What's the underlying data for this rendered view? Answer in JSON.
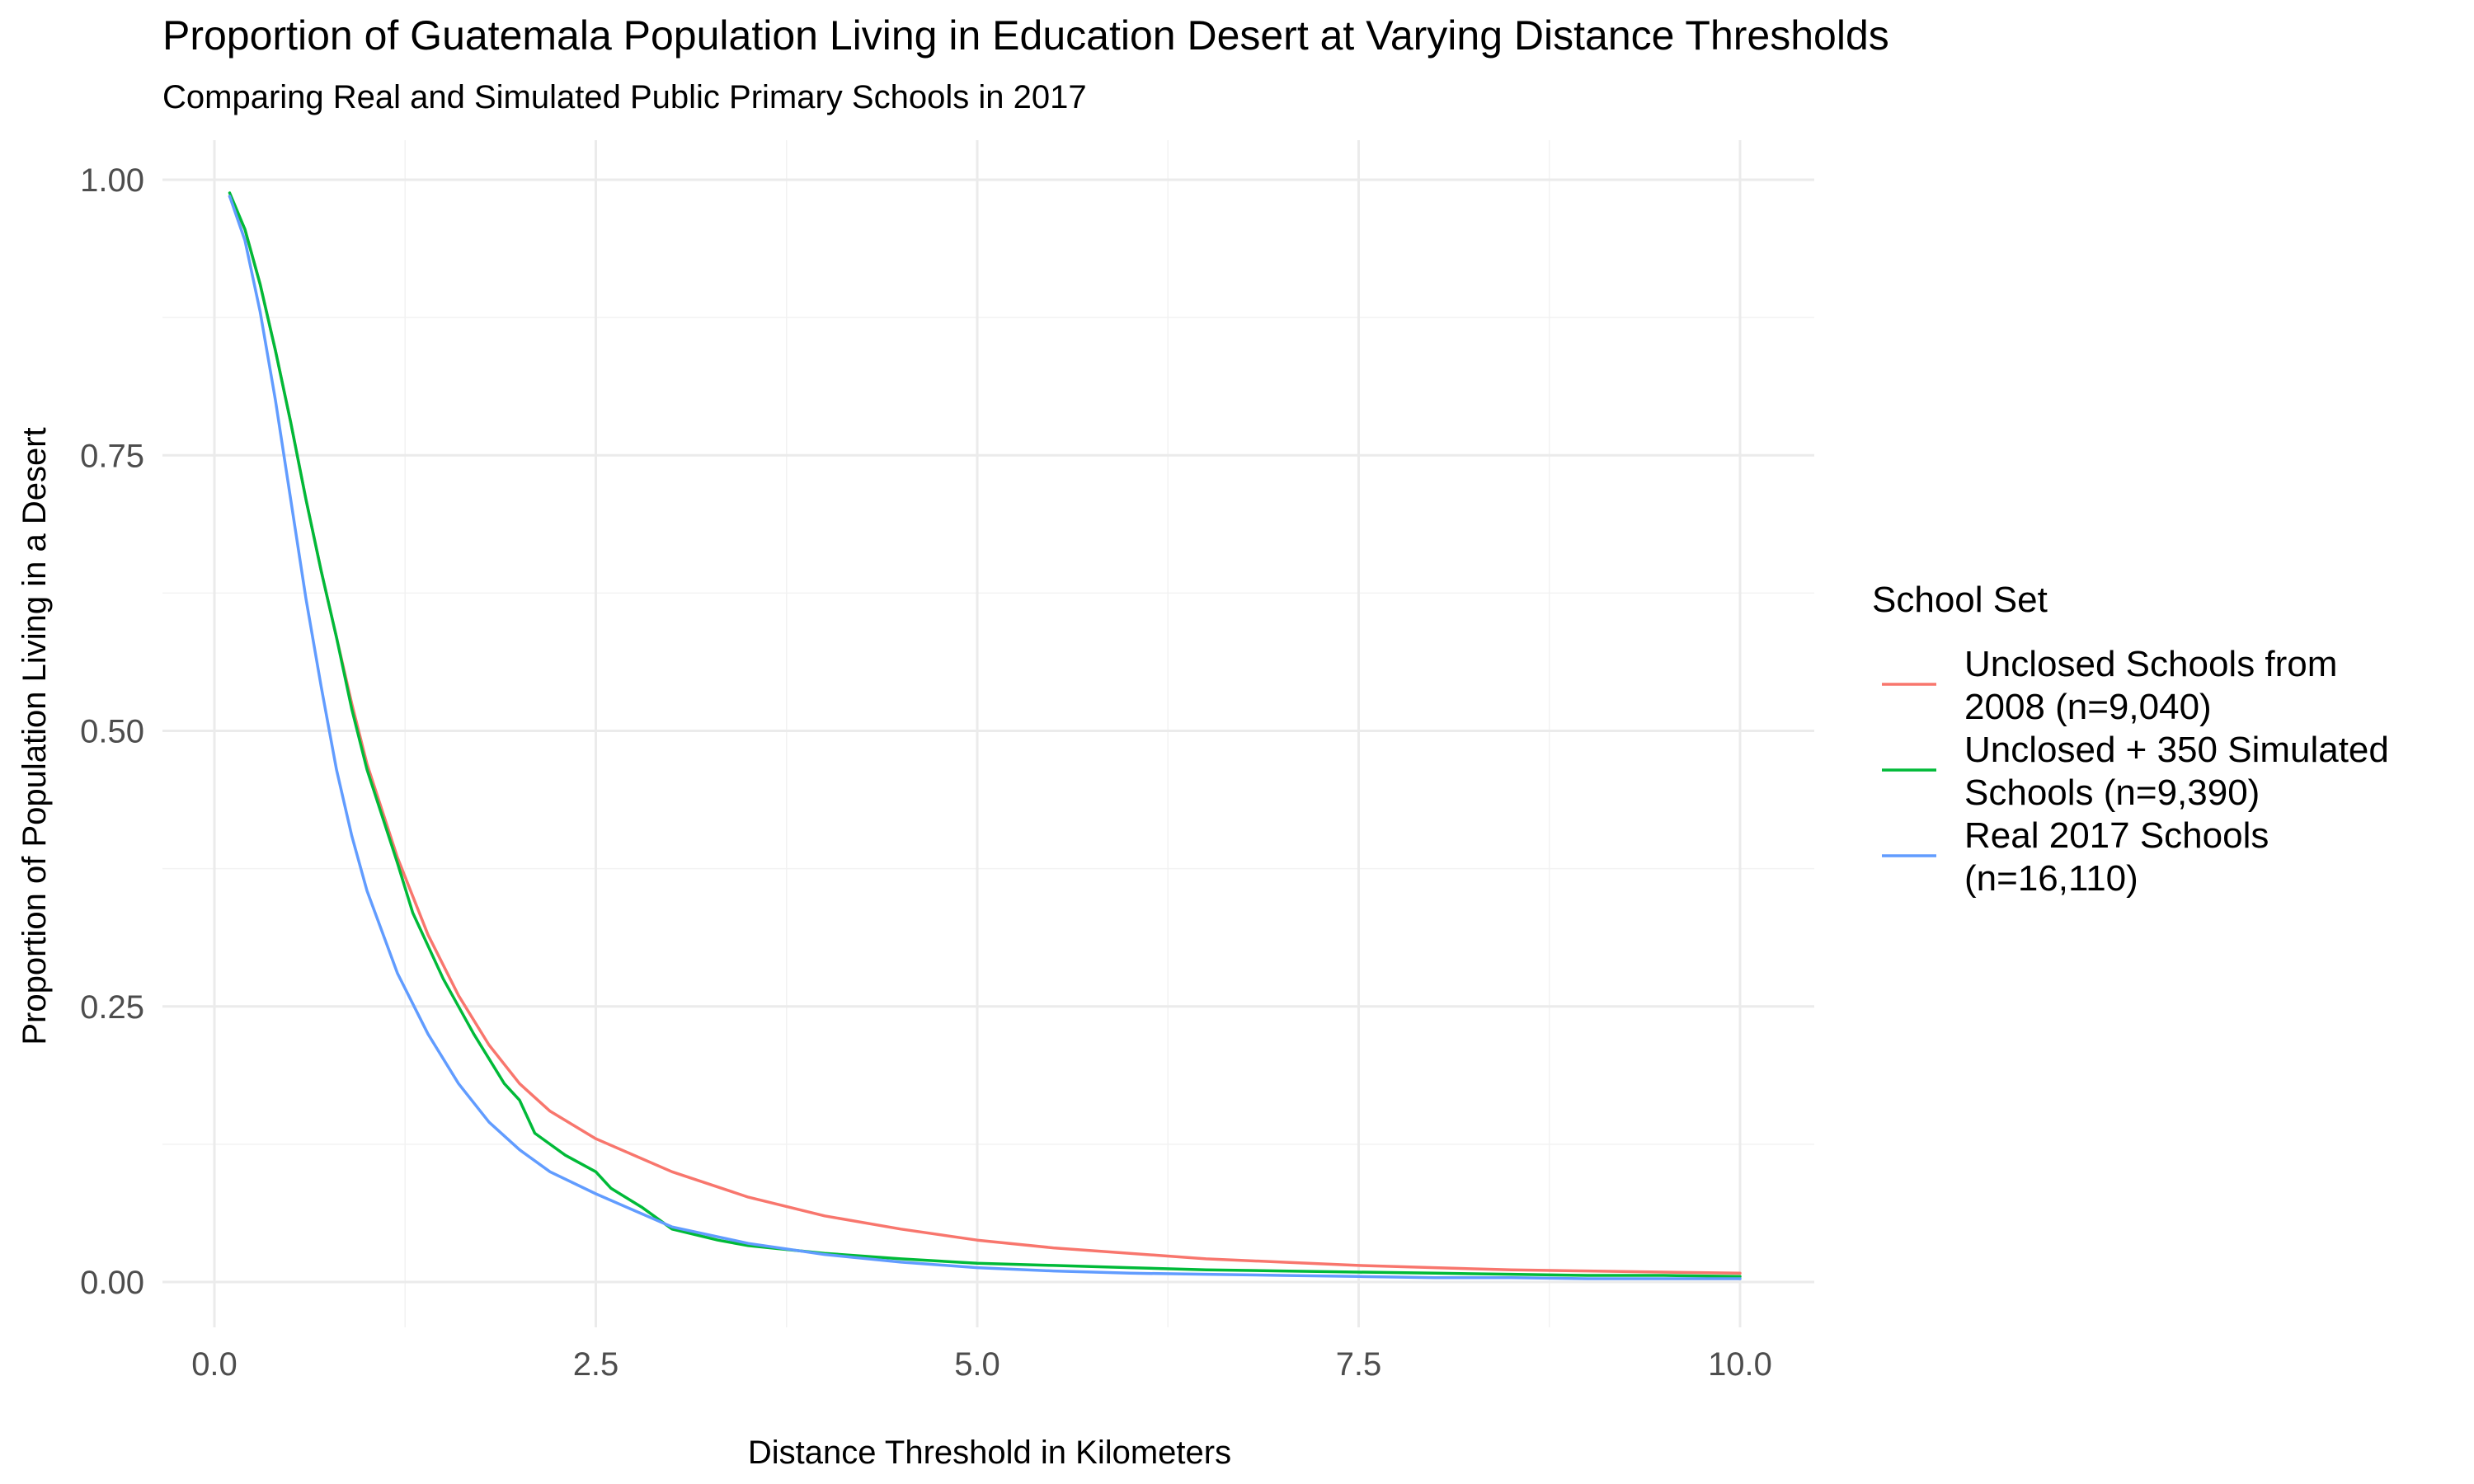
{
  "chart_data": {
    "type": "line",
    "title": "Proportion of Guatemala Population Living in Education Desert at Varying Distance Thresholds",
    "subtitle": "Comparing Real and Simulated Public Primary Schools in 2017",
    "xlabel": "Distance Threshold in Kilometers",
    "ylabel": "Proportion of Population Living in a Desert",
    "xlim": [
      0,
      10
    ],
    "ylim": [
      0,
      1
    ],
    "x_ticks": [
      "0.0",
      "2.5",
      "5.0",
      "7.5",
      "10.0"
    ],
    "y_ticks": [
      "0.00",
      "0.25",
      "0.50",
      "0.75",
      "1.00"
    ],
    "grid": true,
    "legend": {
      "title": "School Set",
      "position": "right"
    },
    "series": [
      {
        "name": "Unclosed Schools from 2008 (n=9,040)",
        "label_lines": [
          "Unclosed Schools from",
          "2008 (n=9,040)"
        ],
        "color": "#F8766D",
        "points": [
          [
            0.1,
            0.985
          ],
          [
            0.2,
            0.955
          ],
          [
            0.3,
            0.905
          ],
          [
            0.4,
            0.845
          ],
          [
            0.5,
            0.78
          ],
          [
            0.6,
            0.71
          ],
          [
            0.7,
            0.645
          ],
          [
            0.8,
            0.585
          ],
          [
            0.9,
            0.525
          ],
          [
            1.0,
            0.47
          ],
          [
            1.2,
            0.385
          ],
          [
            1.4,
            0.315
          ],
          [
            1.6,
            0.26
          ],
          [
            1.8,
            0.215
          ],
          [
            2.0,
            0.18
          ],
          [
            2.2,
            0.155
          ],
          [
            2.5,
            0.13
          ],
          [
            3.0,
            0.1
          ],
          [
            3.5,
            0.077
          ],
          [
            4.0,
            0.06
          ],
          [
            4.5,
            0.048
          ],
          [
            5.0,
            0.038
          ],
          [
            5.5,
            0.031
          ],
          [
            6.0,
            0.026
          ],
          [
            6.5,
            0.021
          ],
          [
            7.0,
            0.018
          ],
          [
            7.5,
            0.015
          ],
          [
            8.0,
            0.013
          ],
          [
            8.5,
            0.011
          ],
          [
            9.0,
            0.01
          ],
          [
            9.5,
            0.009
          ],
          [
            10.0,
            0.008
          ]
        ]
      },
      {
        "name": "Unclosed + 350 Simulated Schools (n=9,390)",
        "label_lines": [
          "Unclosed + 350 Simulated",
          "Schools (n=9,390)"
        ],
        "color": "#00BA38",
        "points": [
          [
            0.1,
            0.988
          ],
          [
            0.2,
            0.955
          ],
          [
            0.3,
            0.905
          ],
          [
            0.4,
            0.845
          ],
          [
            0.5,
            0.78
          ],
          [
            0.6,
            0.71
          ],
          [
            0.7,
            0.645
          ],
          [
            0.8,
            0.585
          ],
          [
            0.9,
            0.52
          ],
          [
            1.0,
            0.465
          ],
          [
            1.2,
            0.38
          ],
          [
            1.3,
            0.335
          ],
          [
            1.5,
            0.275
          ],
          [
            1.7,
            0.225
          ],
          [
            1.9,
            0.18
          ],
          [
            2.0,
            0.165
          ],
          [
            2.1,
            0.135
          ],
          [
            2.3,
            0.115
          ],
          [
            2.5,
            0.1
          ],
          [
            2.6,
            0.085
          ],
          [
            2.8,
            0.068
          ],
          [
            3.0,
            0.048
          ],
          [
            3.3,
            0.038
          ],
          [
            3.5,
            0.033
          ],
          [
            4.0,
            0.026
          ],
          [
            4.5,
            0.021
          ],
          [
            5.0,
            0.017
          ],
          [
            5.5,
            0.015
          ],
          [
            6.0,
            0.013
          ],
          [
            6.5,
            0.011
          ],
          [
            7.0,
            0.01
          ],
          [
            7.5,
            0.009
          ],
          [
            8.0,
            0.008
          ],
          [
            8.5,
            0.007
          ],
          [
            9.0,
            0.006
          ],
          [
            9.5,
            0.006
          ],
          [
            10.0,
            0.005
          ]
        ]
      },
      {
        "name": "Real 2017 Schools (n=16,110)",
        "label_lines": [
          "Real 2017 Schools",
          "(n=16,110)"
        ],
        "color": "#619CFF",
        "points": [
          [
            0.1,
            0.985
          ],
          [
            0.2,
            0.945
          ],
          [
            0.3,
            0.88
          ],
          [
            0.4,
            0.8
          ],
          [
            0.5,
            0.71
          ],
          [
            0.6,
            0.62
          ],
          [
            0.7,
            0.54
          ],
          [
            0.8,
            0.465
          ],
          [
            0.9,
            0.405
          ],
          [
            1.0,
            0.355
          ],
          [
            1.2,
            0.28
          ],
          [
            1.4,
            0.225
          ],
          [
            1.6,
            0.18
          ],
          [
            1.8,
            0.145
          ],
          [
            2.0,
            0.12
          ],
          [
            2.2,
            0.1
          ],
          [
            2.5,
            0.08
          ],
          [
            3.0,
            0.05
          ],
          [
            3.5,
            0.035
          ],
          [
            4.0,
            0.025
          ],
          [
            4.5,
            0.018
          ],
          [
            5.0,
            0.013
          ],
          [
            5.5,
            0.01
          ],
          [
            6.0,
            0.008
          ],
          [
            6.5,
            0.007
          ],
          [
            7.0,
            0.006
          ],
          [
            7.5,
            0.005
          ],
          [
            8.0,
            0.004
          ],
          [
            8.5,
            0.004
          ],
          [
            9.0,
            0.003
          ],
          [
            9.5,
            0.003
          ],
          [
            10.0,
            0.003
          ]
        ]
      }
    ]
  }
}
